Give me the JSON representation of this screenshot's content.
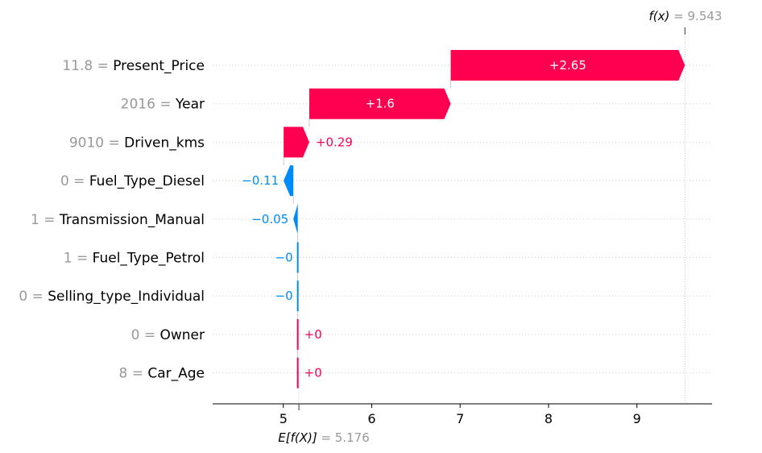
{
  "chart_data": {
    "type": "waterfall",
    "base_value": 5.176,
    "final_value": 9.543,
    "base_label_main": "E[f(X)]",
    "base_label_eq": " = 5.176",
    "final_label_main": "f(x)",
    "final_label_eq": " = 9.543",
    "xlim": [
      4.2,
      9.85
    ],
    "x_ticks": [
      {
        "value": 5,
        "label": "5"
      },
      {
        "value": 6,
        "label": "6"
      },
      {
        "value": 7,
        "label": "7"
      },
      {
        "value": 8,
        "label": "8"
      },
      {
        "value": 9,
        "label": "9"
      }
    ],
    "features": [
      {
        "value": "11.8",
        "name": "Present_Price",
        "contribution": 2.65,
        "label": "+2.65"
      },
      {
        "value": "2016",
        "name": "Year",
        "contribution": 1.6,
        "label": "+1.6"
      },
      {
        "value": "9010",
        "name": "Driven_kms",
        "contribution": 0.29,
        "label": "+0.29"
      },
      {
        "value": "0",
        "name": "Fuel_Type_Diesel",
        "contribution": -0.11,
        "label": "−0.11"
      },
      {
        "value": "1",
        "name": "Transmission_Manual",
        "contribution": -0.05,
        "label": "−0.05"
      },
      {
        "value": "1",
        "name": "Fuel_Type_Petrol",
        "contribution": -0.0,
        "label": "−0"
      },
      {
        "value": "0",
        "name": "Selling_type_Individual",
        "contribution": -0.0,
        "label": "−0"
      },
      {
        "value": "0",
        "name": "Owner",
        "contribution": 0.0,
        "label": "+0"
      },
      {
        "value": "8",
        "name": "Car_Age",
        "contribution": 0.0,
        "label": "+0"
      }
    ],
    "colors": {
      "positive": "#ff0051",
      "negative": "#008bfb",
      "grid": "#cccccc",
      "muted": "#999999"
    }
  }
}
